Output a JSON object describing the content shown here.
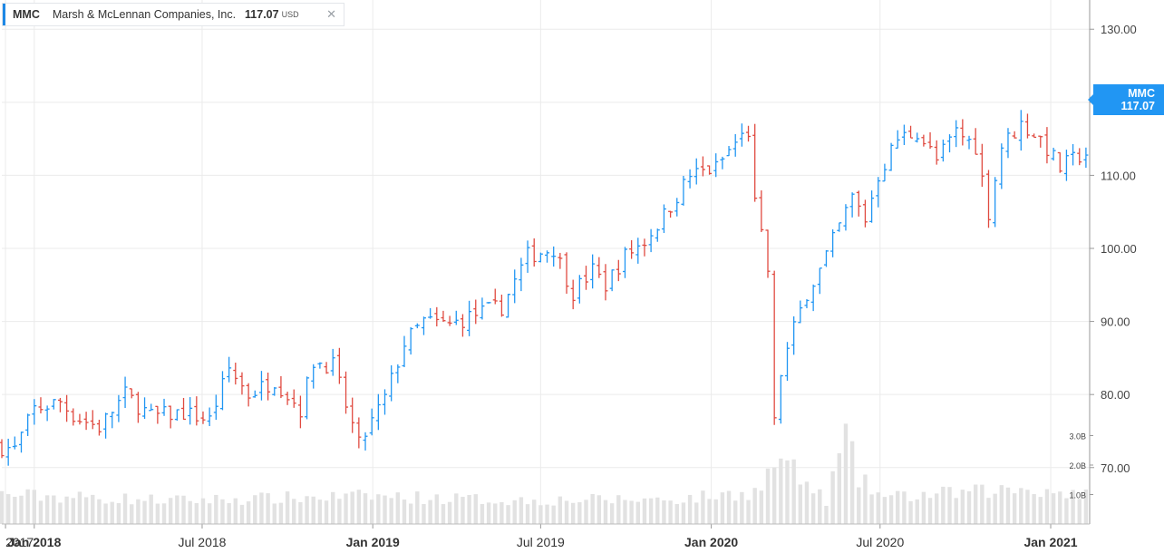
{
  "legend": {
    "symbol": "MMC",
    "company": "Marsh & McLennan Companies, Inc.",
    "price": "117.07",
    "currency": "USD",
    "close_glyph": "✕"
  },
  "price_badge": {
    "symbol": "MMC",
    "price": "117.07"
  },
  "colors": {
    "up": "#2196f3",
    "down": "#e04a40",
    "volume": "#e2e2e2",
    "grid": "#ebebeb"
  },
  "chart_data": {
    "type": "ohlc",
    "interval": "weekly",
    "price_axis": {
      "min": 66,
      "max": 134,
      "ticks": [
        70,
        80,
        90,
        100,
        110,
        120,
        130
      ],
      "tick_labels": [
        "70.00",
        "80.00",
        "90.00",
        "100.00",
        "110.00",
        "120.00",
        "130.00"
      ]
    },
    "volume_axis": {
      "ticks": [
        1.0,
        2.0,
        3.0
      ],
      "tick_labels": [
        "1.0B",
        "2.0B",
        "3.0B"
      ],
      "unit": "B"
    },
    "x_axis": {
      "start": "2017-11-27",
      "end": "2021-02-12",
      "ticks": [
        {
          "date": "2017-12-01",
          "label": "2017",
          "bold": false
        },
        {
          "date": "2018-01-01",
          "label": "Jan 2018",
          "bold": true
        },
        {
          "date": "2018-07-01",
          "label": "Jul 2018",
          "bold": false
        },
        {
          "date": "2019-01-01",
          "label": "Jan 2019",
          "bold": true
        },
        {
          "date": "2019-07-01",
          "label": "Jul 2019",
          "bold": false
        },
        {
          "date": "2020-01-01",
          "label": "Jan 2020",
          "bold": true
        },
        {
          "date": "2020-07-01",
          "label": "Jul 2020",
          "bold": false
        },
        {
          "date": "2021-01-01",
          "label": "Jan 2021",
          "bold": true
        }
      ]
    },
    "anchors": [
      [
        "2017-11-27",
        73
      ],
      [
        "2017-12-18",
        72.5
      ],
      [
        "2018-01-08",
        78
      ],
      [
        "2018-02-05",
        79
      ],
      [
        "2018-02-20",
        77
      ],
      [
        "2018-03-19",
        75.5
      ],
      [
        "2018-04-16",
        80
      ],
      [
        "2018-05-14",
        77
      ],
      [
        "2018-06-18",
        77.5
      ],
      [
        "2018-07-16",
        76.5
      ],
      [
        "2018-08-06",
        83.5
      ],
      [
        "2018-08-27",
        80
      ],
      [
        "2018-09-24",
        82
      ],
      [
        "2018-10-22",
        78
      ],
      [
        "2018-11-05",
        84.5
      ],
      [
        "2018-11-26",
        84
      ],
      [
        "2018-12-24",
        73
      ],
      [
        "2019-01-21",
        79.5
      ],
      [
        "2019-02-11",
        87
      ],
      [
        "2019-03-04",
        90
      ],
      [
        "2019-04-01",
        89.5
      ],
      [
        "2019-04-29",
        91
      ],
      [
        "2019-05-27",
        92
      ],
      [
        "2019-06-24",
        99
      ],
      [
        "2019-07-22",
        100
      ],
      [
        "2019-08-12",
        94
      ],
      [
        "2019-09-02",
        97
      ],
      [
        "2019-09-16",
        95
      ],
      [
        "2019-10-07",
        99
      ],
      [
        "2019-10-28",
        101
      ],
      [
        "2019-11-18",
        104.5
      ],
      [
        "2019-12-16",
        110
      ],
      [
        "2020-01-13",
        111
      ],
      [
        "2020-02-03",
        114.5
      ],
      [
        "2020-02-17",
        116
      ],
      [
        "2020-02-24",
        106
      ],
      [
        "2020-03-09",
        97
      ],
      [
        "2020-03-16",
        76
      ],
      [
        "2020-03-23",
        83
      ],
      [
        "2020-04-06",
        89
      ],
      [
        "2020-04-20",
        94
      ],
      [
        "2020-05-04",
        97
      ],
      [
        "2020-05-25",
        103
      ],
      [
        "2020-06-08",
        107
      ],
      [
        "2020-06-22",
        104
      ],
      [
        "2020-07-06",
        110
      ],
      [
        "2020-07-27",
        115
      ],
      [
        "2020-08-17",
        116
      ],
      [
        "2020-09-07",
        112
      ],
      [
        "2020-09-28",
        116
      ],
      [
        "2020-10-19",
        114
      ],
      [
        "2020-11-02",
        105
      ],
      [
        "2020-11-16",
        114
      ],
      [
        "2020-12-07",
        117
      ],
      [
        "2020-12-28",
        115
      ],
      [
        "2021-01-18",
        111
      ],
      [
        "2021-02-12",
        113
      ]
    ],
    "volume_anchors": [
      [
        "2017-11-27",
        1.0
      ],
      [
        "2018-06-01",
        0.8
      ],
      [
        "2019-01-01",
        0.95
      ],
      [
        "2019-06-01",
        0.8
      ],
      [
        "2019-12-01",
        0.85
      ],
      [
        "2020-02-20",
        1.1
      ],
      [
        "2020-03-09",
        2.0
      ],
      [
        "2020-03-16",
        2.3
      ],
      [
        "2020-04-06",
        1.5
      ],
      [
        "2020-05-04",
        0.8
      ],
      [
        "2020-05-25",
        3.0
      ],
      [
        "2020-06-08",
        1.5
      ],
      [
        "2020-07-06",
        0.9
      ],
      [
        "2020-12-07",
        1.2
      ],
      [
        "2021-02-12",
        1.0
      ]
    ]
  }
}
